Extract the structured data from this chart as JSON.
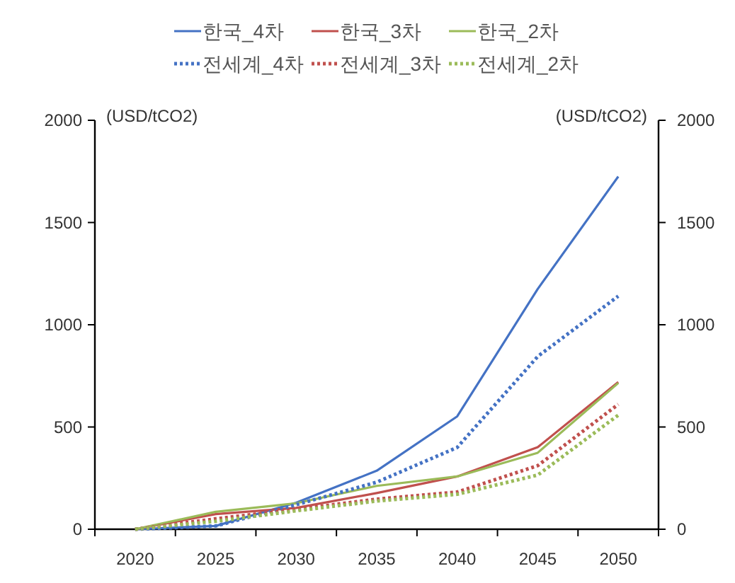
{
  "chart_data": {
    "type": "line",
    "categories": [
      "2020",
      "2025",
      "2030",
      "2035",
      "2040",
      "2045",
      "2050"
    ],
    "series": [
      {
        "name": "한국_4차",
        "color": "#4472c4",
        "line_style": "solid",
        "values": [
          0,
          16,
          130,
          286,
          552,
          1175,
          1725
        ]
      },
      {
        "name": "한국_3차",
        "color": "#c0504d",
        "line_style": "solid",
        "values": [
          0,
          74,
          104,
          177,
          258,
          401,
          720
        ]
      },
      {
        "name": "한국_2차",
        "color": "#9bbb59",
        "line_style": "solid",
        "values": [
          0,
          85,
          127,
          212,
          258,
          374,
          715
        ]
      },
      {
        "name": "전세계_4차",
        "color": "#4472c4",
        "line_style": "dotted",
        "values": [
          0,
          16,
          120,
          230,
          400,
          845,
          1140
        ]
      },
      {
        "name": "전세계_3차",
        "color": "#c0504d",
        "line_style": "dotted",
        "values": [
          0,
          51,
          97,
          147,
          182,
          311,
          611
        ]
      },
      {
        "name": "전세계_2차",
        "color": "#9bbb59",
        "line_style": "dotted",
        "values": [
          0,
          39,
          90,
          138,
          171,
          265,
          558
        ]
      }
    ],
    "ylabel": "(USD/tCO2)",
    "y2label": "(USD/tCO2)",
    "ylim": [
      0,
      2000
    ],
    "yticks": [
      0,
      500,
      1000,
      1500,
      2000
    ],
    "y2lim": [
      0,
      2000
    ],
    "y2ticks": [
      0,
      500,
      1000,
      1500,
      2000
    ],
    "legend": "top",
    "grid": false
  }
}
